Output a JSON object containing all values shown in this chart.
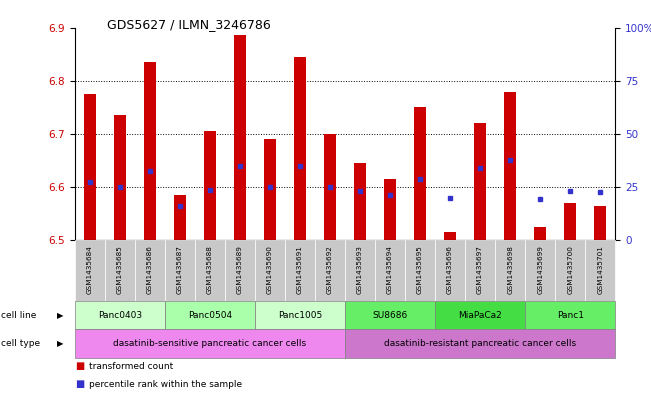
{
  "title": "GDS5627 / ILMN_3246786",
  "samples": [
    "GSM1435684",
    "GSM1435685",
    "GSM1435686",
    "GSM1435687",
    "GSM1435688",
    "GSM1435689",
    "GSM1435690",
    "GSM1435691",
    "GSM1435692",
    "GSM1435693",
    "GSM1435694",
    "GSM1435695",
    "GSM1435696",
    "GSM1435697",
    "GSM1435698",
    "GSM1435699",
    "GSM1435700",
    "GSM1435701"
  ],
  "transformed_count": [
    6.775,
    6.735,
    6.835,
    6.585,
    6.705,
    6.885,
    6.69,
    6.845,
    6.7,
    6.645,
    6.615,
    6.75,
    6.515,
    6.72,
    6.778,
    6.525,
    6.57,
    6.565
  ],
  "percentile_rank": [
    6.61,
    6.6,
    6.63,
    6.565,
    6.595,
    6.64,
    6.6,
    6.64,
    6.6,
    6.593,
    6.584,
    6.615,
    6.58,
    6.635,
    6.65,
    6.578,
    6.592,
    6.591
  ],
  "bar_bottom": 6.5,
  "ylim_left": [
    6.5,
    6.9
  ],
  "ylim_right": [
    0,
    100
  ],
  "yticks_left": [
    6.5,
    6.6,
    6.7,
    6.8,
    6.9
  ],
  "yticks_right": [
    0,
    25,
    50,
    75,
    100
  ],
  "ytick_right_labels": [
    "0",
    "25",
    "50",
    "75",
    "100%"
  ],
  "bar_color": "#cc0000",
  "blue_color": "#3333cc",
  "cell_lines": [
    {
      "label": "Panc0403",
      "start": 0,
      "end": 2,
      "color": "#ccffcc"
    },
    {
      "label": "Panc0504",
      "start": 3,
      "end": 5,
      "color": "#aaffaa"
    },
    {
      "label": "Panc1005",
      "start": 6,
      "end": 8,
      "color": "#ccffcc"
    },
    {
      "label": "SU8686",
      "start": 9,
      "end": 11,
      "color": "#66ee66"
    },
    {
      "label": "MiaPaCa2",
      "start": 12,
      "end": 14,
      "color": "#44dd44"
    },
    {
      "label": "Panc1",
      "start": 15,
      "end": 17,
      "color": "#66ee66"
    }
  ],
  "cell_types": [
    {
      "label": "dasatinib-sensitive pancreatic cancer cells",
      "start": 0,
      "end": 8,
      "color": "#ee88ee"
    },
    {
      "label": "dasatinib-resistant pancreatic cancer cells",
      "start": 9,
      "end": 17,
      "color": "#cc77cc"
    }
  ],
  "grid_yticks": [
    6.6,
    6.7,
    6.8
  ],
  "xtick_gray": "#c8c8c8",
  "xlabel_gray": "#d0d0d0",
  "spine_color": "#888888"
}
